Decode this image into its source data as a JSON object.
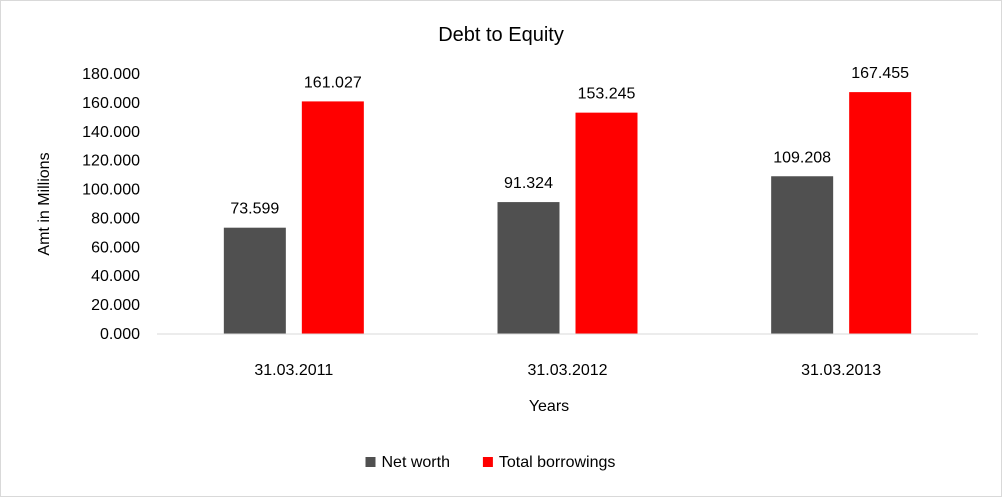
{
  "chart_data": {
    "type": "bar",
    "title": "Debt to Equity",
    "xlabel": "Years",
    "ylabel": "Amt in Millions",
    "categories": [
      "31.03.2011",
      "31.03.2012",
      "31.03.2013"
    ],
    "series": [
      {
        "name": "Net worth",
        "color": "#505050",
        "values": [
          73.599,
          91.324,
          109.208
        ],
        "labels": [
          "73.599",
          "91.324",
          "109.208"
        ]
      },
      {
        "name": "Total borrowings",
        "color": "#ff0000",
        "values": [
          161.027,
          153.245,
          167.455
        ],
        "labels": [
          "161.027",
          "153.245",
          "167.455"
        ]
      }
    ],
    "ylim": [
      0,
      180
    ],
    "yticks": [
      0,
      20,
      40,
      60,
      80,
      100,
      120,
      140,
      160,
      180
    ],
    "ytick_labels": [
      "0.000",
      "20.000",
      "40.000",
      "60.000",
      "80.000",
      "100.000",
      "120.000",
      "140.000",
      "160.000",
      "180.000"
    ],
    "grid": false,
    "legend_position": "bottom"
  }
}
